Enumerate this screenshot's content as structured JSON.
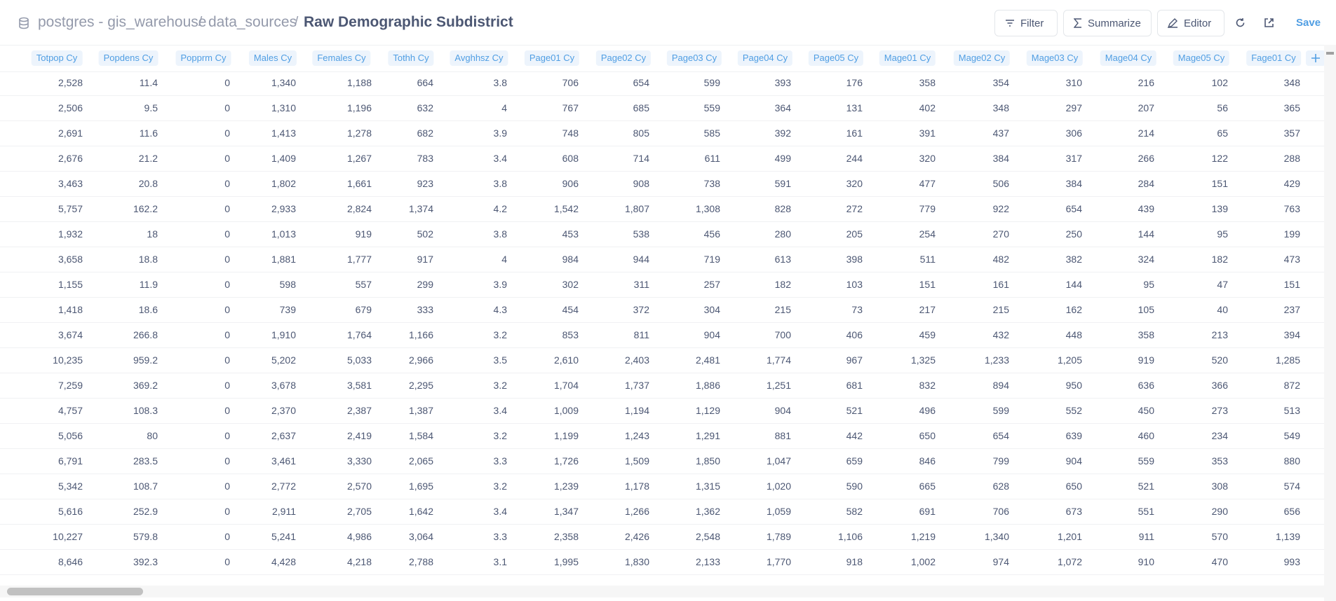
{
  "header": {
    "breadcrumbs": [
      "postgres - gis_warehouse",
      "data_sources",
      "Raw Demographic Subdistrict"
    ],
    "buttons": [
      "Filter",
      "Summarize",
      "Editor"
    ],
    "save": "Save"
  },
  "table": {
    "columns": [
      "Totpop Cy",
      "Popdens Cy",
      "Popprm Cy",
      "Males Cy",
      "Females Cy",
      "Tothh Cy",
      "Avghhsz Cy",
      "Page01 Cy",
      "Page02 Cy",
      "Page03 Cy",
      "Page04 Cy",
      "Page05 Cy",
      "Mage01 Cy",
      "Mage02 Cy",
      "Mage03 Cy",
      "Mage04 Cy",
      "Mage05 Cy",
      "Fage01 Cy"
    ],
    "rows": [
      [
        "2,528",
        "11.4",
        "0",
        "1,340",
        "1,188",
        "664",
        "3.8",
        "706",
        "654",
        "599",
        "393",
        "176",
        "358",
        "354",
        "310",
        "216",
        "102",
        "348"
      ],
      [
        "2,506",
        "9.5",
        "0",
        "1,310",
        "1,196",
        "632",
        "4",
        "767",
        "685",
        "559",
        "364",
        "131",
        "402",
        "348",
        "297",
        "207",
        "56",
        "365"
      ],
      [
        "2,691",
        "11.6",
        "0",
        "1,413",
        "1,278",
        "682",
        "3.9",
        "748",
        "805",
        "585",
        "392",
        "161",
        "391",
        "437",
        "306",
        "214",
        "65",
        "357"
      ],
      [
        "2,676",
        "21.2",
        "0",
        "1,409",
        "1,267",
        "783",
        "3.4",
        "608",
        "714",
        "611",
        "499",
        "244",
        "320",
        "384",
        "317",
        "266",
        "122",
        "288"
      ],
      [
        "3,463",
        "20.8",
        "0",
        "1,802",
        "1,661",
        "923",
        "3.8",
        "906",
        "908",
        "738",
        "591",
        "320",
        "477",
        "506",
        "384",
        "284",
        "151",
        "429"
      ],
      [
        "5,757",
        "162.2",
        "0",
        "2,933",
        "2,824",
        "1,374",
        "4.2",
        "1,542",
        "1,807",
        "1,308",
        "828",
        "272",
        "779",
        "922",
        "654",
        "439",
        "139",
        "763"
      ],
      [
        "1,932",
        "18",
        "0",
        "1,013",
        "919",
        "502",
        "3.8",
        "453",
        "538",
        "456",
        "280",
        "205",
        "254",
        "270",
        "250",
        "144",
        "95",
        "199"
      ],
      [
        "3,658",
        "18.8",
        "0",
        "1,881",
        "1,777",
        "917",
        "4",
        "984",
        "944",
        "719",
        "613",
        "398",
        "511",
        "482",
        "382",
        "324",
        "182",
        "473"
      ],
      [
        "1,155",
        "11.9",
        "0",
        "598",
        "557",
        "299",
        "3.9",
        "302",
        "311",
        "257",
        "182",
        "103",
        "151",
        "161",
        "144",
        "95",
        "47",
        "151"
      ],
      [
        "1,418",
        "18.6",
        "0",
        "739",
        "679",
        "333",
        "4.3",
        "454",
        "372",
        "304",
        "215",
        "73",
        "217",
        "215",
        "162",
        "105",
        "40",
        "237"
      ],
      [
        "3,674",
        "266.8",
        "0",
        "1,910",
        "1,764",
        "1,166",
        "3.2",
        "853",
        "811",
        "904",
        "700",
        "406",
        "459",
        "432",
        "448",
        "358",
        "213",
        "394"
      ],
      [
        "10,235",
        "959.2",
        "0",
        "5,202",
        "5,033",
        "2,966",
        "3.5",
        "2,610",
        "2,403",
        "2,481",
        "1,774",
        "967",
        "1,325",
        "1,233",
        "1,205",
        "919",
        "520",
        "1,285"
      ],
      [
        "7,259",
        "369.2",
        "0",
        "3,678",
        "3,581",
        "2,295",
        "3.2",
        "1,704",
        "1,737",
        "1,886",
        "1,251",
        "681",
        "832",
        "894",
        "950",
        "636",
        "366",
        "872"
      ],
      [
        "4,757",
        "108.3",
        "0",
        "2,370",
        "2,387",
        "1,387",
        "3.4",
        "1,009",
        "1,194",
        "1,129",
        "904",
        "521",
        "496",
        "599",
        "552",
        "450",
        "273",
        "513"
      ],
      [
        "5,056",
        "80",
        "0",
        "2,637",
        "2,419",
        "1,584",
        "3.2",
        "1,199",
        "1,243",
        "1,291",
        "881",
        "442",
        "650",
        "654",
        "639",
        "460",
        "234",
        "549"
      ],
      [
        "6,791",
        "283.5",
        "0",
        "3,461",
        "3,330",
        "2,065",
        "3.3",
        "1,726",
        "1,509",
        "1,850",
        "1,047",
        "659",
        "846",
        "799",
        "904",
        "559",
        "353",
        "880"
      ],
      [
        "5,342",
        "108.7",
        "0",
        "2,772",
        "2,570",
        "1,695",
        "3.2",
        "1,239",
        "1,178",
        "1,315",
        "1,020",
        "590",
        "665",
        "628",
        "650",
        "521",
        "308",
        "574"
      ],
      [
        "5,616",
        "252.9",
        "0",
        "2,911",
        "2,705",
        "1,642",
        "3.4",
        "1,347",
        "1,266",
        "1,362",
        "1,059",
        "582",
        "691",
        "706",
        "673",
        "551",
        "290",
        "656"
      ],
      [
        "10,227",
        "579.8",
        "0",
        "5,241",
        "4,986",
        "3,064",
        "3.3",
        "2,358",
        "2,426",
        "2,548",
        "1,789",
        "1,106",
        "1,219",
        "1,340",
        "1,201",
        "911",
        "570",
        "1,139"
      ],
      [
        "8,646",
        "392.3",
        "0",
        "4,428",
        "4,218",
        "2,788",
        "3.1",
        "1,995",
        "1,830",
        "2,133",
        "1,770",
        "918",
        "1,002",
        "974",
        "1,072",
        "910",
        "470",
        "993"
      ]
    ]
  }
}
